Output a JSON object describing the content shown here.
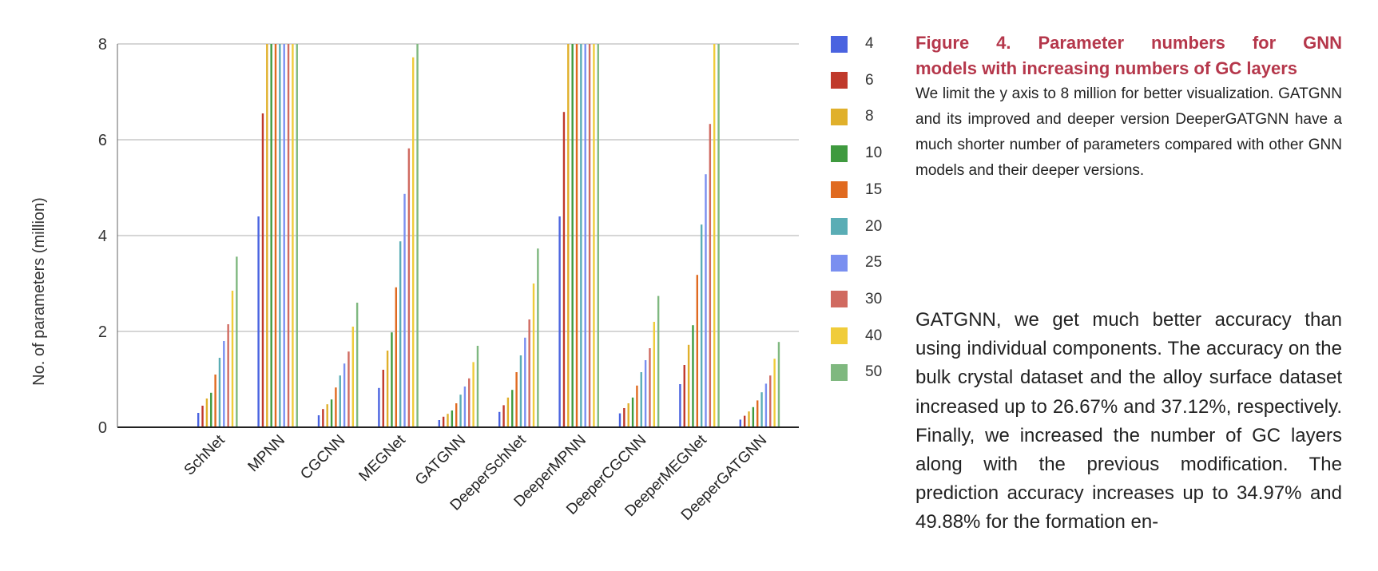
{
  "chart_data": {
    "type": "bar",
    "ylabel": "No. of parameters (million)",
    "xlabel": "",
    "ylim": [
      0,
      8
    ],
    "yticks": [
      0,
      2,
      4,
      6,
      8
    ],
    "grid": true,
    "legend_position": "right",
    "categories": [
      "SchNet",
      "MPNN",
      "CGCNN",
      "MEGNet",
      "GATGNN",
      "DeeperSchNet",
      "DeeperMPNN",
      "DeeperCGCNN",
      "DeeperMEGNet",
      "DeeperGATGNN"
    ],
    "series": [
      {
        "name": "4",
        "color": "#4a63e0",
        "values": [
          0.3,
          4.4,
          0.25,
          0.82,
          0.15,
          0.32,
          4.4,
          0.29,
          0.9,
          0.16
        ]
      },
      {
        "name": "6",
        "color": "#c0392b",
        "values": [
          0.45,
          6.55,
          0.38,
          1.2,
          0.22,
          0.46,
          6.58,
          0.4,
          1.3,
          0.24
        ]
      },
      {
        "name": "8",
        "color": "#e0b02b",
        "values": [
          0.6,
          8.0,
          0.48,
          1.6,
          0.28,
          0.62,
          8.0,
          0.5,
          1.72,
          0.33
        ]
      },
      {
        "name": "10",
        "color": "#3f9a3f",
        "values": [
          0.72,
          8.0,
          0.58,
          1.98,
          0.35,
          0.78,
          8.0,
          0.62,
          2.13,
          0.42
        ]
      },
      {
        "name": "15",
        "color": "#e06a20",
        "values": [
          1.1,
          8.0,
          0.83,
          2.92,
          0.5,
          1.15,
          8.0,
          0.87,
          3.18,
          0.56
        ]
      },
      {
        "name": "20",
        "color": "#5aadb5",
        "values": [
          1.45,
          8.0,
          1.08,
          3.88,
          0.68,
          1.5,
          8.0,
          1.15,
          4.23,
          0.73
        ]
      },
      {
        "name": "25",
        "color": "#7a8ff0",
        "values": [
          1.8,
          8.0,
          1.33,
          4.87,
          0.85,
          1.87,
          8.0,
          1.4,
          5.28,
          0.91
        ]
      },
      {
        "name": "30",
        "color": "#d06a60",
        "values": [
          2.15,
          8.0,
          1.58,
          5.82,
          1.02,
          2.25,
          8.0,
          1.65,
          6.33,
          1.08
        ]
      },
      {
        "name": "40",
        "color": "#f0cc3a",
        "values": [
          2.85,
          8.0,
          2.1,
          7.72,
          1.36,
          3.0,
          8.0,
          2.2,
          8.0,
          1.43
        ]
      },
      {
        "name": "50",
        "color": "#7fb87f",
        "values": [
          3.56,
          8.0,
          2.6,
          8.0,
          1.7,
          3.73,
          8.0,
          2.74,
          8.0,
          1.78
        ]
      }
    ]
  },
  "caption": {
    "title_line1": "Figure 4. Parameter numbers for GNN",
    "title_line2": "models with increasing numbers of GC layers",
    "body": "We limit the y axis to 8 million for better visualization. GATGNN and its improved and deeper version DeeperGATGNN have a much shorter number of parameters compared with other GNN models and their deeper versions."
  },
  "body_text": "GATGNN, we get much better accuracy than using individual components. The accuracy on the bulk crystal dataset and the alloy surface dataset increased up to 26.67% and 37.12%, respectively. Finally, we increased the number of GC layers along with the previous modification. The prediction accuracy increases up to 34.97% and 49.88% for the formation en-"
}
